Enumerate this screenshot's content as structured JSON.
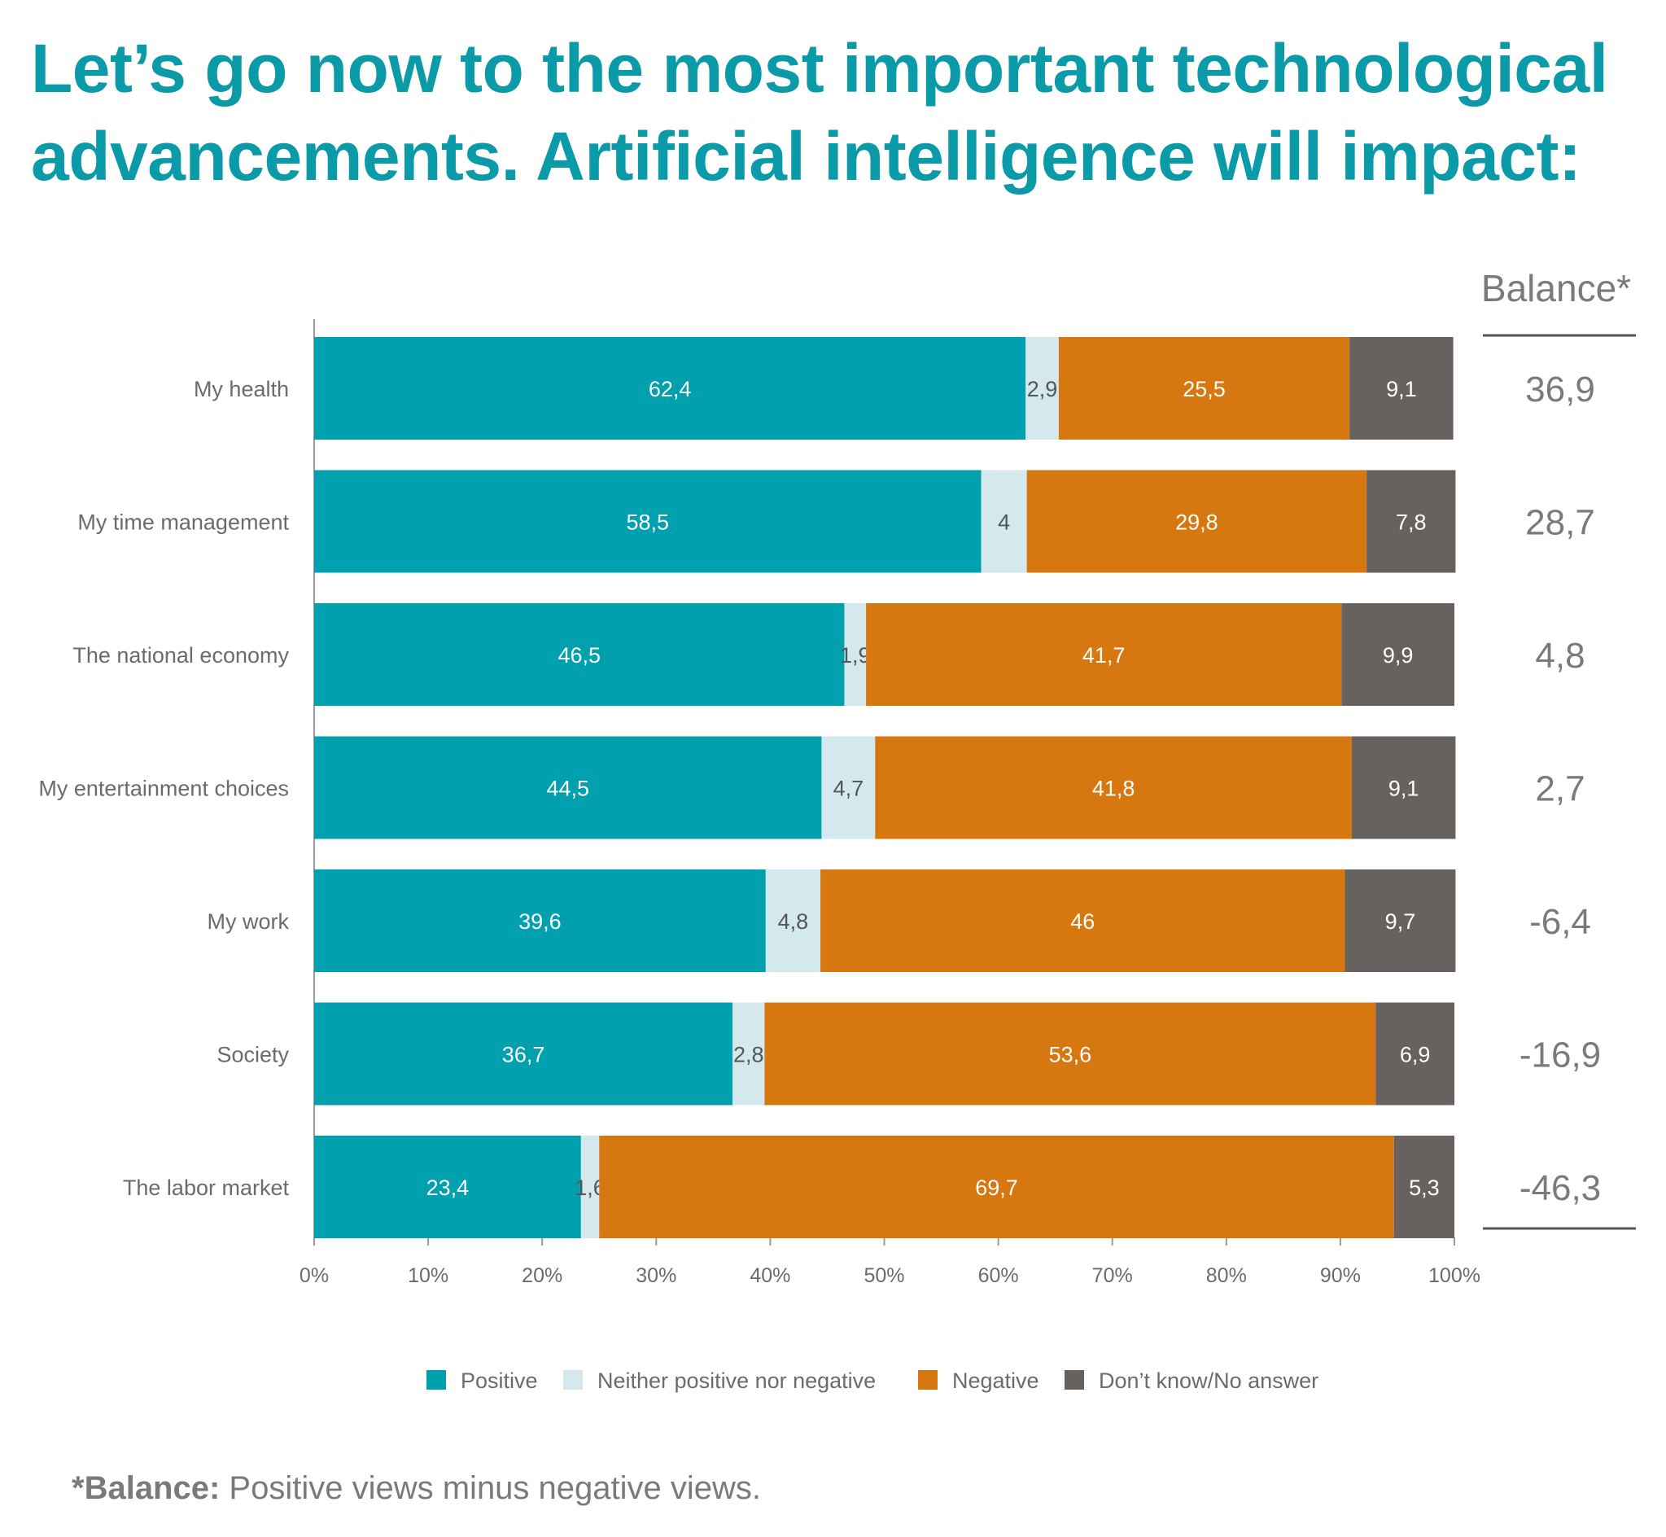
{
  "title_lines": [
    "Let’s go now to the most important technological",
    "advancements. Artificial intelligence will impact:"
  ],
  "balance_header": "Balance*",
  "footnote": {
    "label": "*Balance:",
    "text": " Positive views minus negative views."
  },
  "colors": {
    "title": "#0b9aa8",
    "positive": "#00a0ae",
    "neither": "#d4e9ee",
    "negative": "#d77710",
    "dont_know": "#676160",
    "axis": "#9a9a9a",
    "muted_text": "#6b6b6b"
  },
  "chart_data": {
    "type": "bar",
    "orientation": "horizontal",
    "stacked": true,
    "categories": [
      "My health",
      "My time management",
      "The national economy",
      "My entertainment choices",
      "My work",
      "Society",
      "The labor market"
    ],
    "series": [
      {
        "name": "Positive",
        "key": "positive",
        "values": [
          62.4,
          58.5,
          46.5,
          44.5,
          39.6,
          36.7,
          23.4
        ],
        "labels": [
          "62,4",
          "58,5",
          "46,5",
          "44,5",
          "39,6",
          "36,7",
          "23,4"
        ]
      },
      {
        "name": "Neither positive nor negative",
        "key": "neither",
        "values": [
          2.9,
          4,
          1.9,
          4.7,
          4.8,
          2.8,
          1.6
        ],
        "labels": [
          "2,9",
          "4",
          "1,9",
          "4,7",
          "4,8",
          "2,8",
          "1,6"
        ]
      },
      {
        "name": "Negative",
        "key": "negative",
        "values": [
          25.5,
          29.8,
          41.7,
          41.8,
          46,
          53.6,
          69.7
        ],
        "labels": [
          "25,5",
          "29,8",
          "41,7",
          "41,8",
          "46",
          "53,6",
          "69,7"
        ]
      },
      {
        "name": "Don’t know/No answer",
        "key": "dont_know",
        "values": [
          9.1,
          7.8,
          9.9,
          9.1,
          9.7,
          6.9,
          5.3
        ],
        "labels": [
          "9,1",
          "7,8",
          "9,9",
          "9,1",
          "9,7",
          "6,9",
          "5,3"
        ]
      }
    ],
    "balance": [
      "36,9",
      "28,7",
      "4,8",
      "2,7",
      "-6,4",
      "-16,9",
      "-46,3"
    ],
    "xlim": [
      0,
      100
    ],
    "xticks": [
      "0%",
      "10%",
      "20%",
      "30%",
      "40%",
      "50%",
      "60%",
      "70%",
      "80%",
      "90%",
      "100%"
    ],
    "grid": false,
    "legend_position": "bottom"
  }
}
